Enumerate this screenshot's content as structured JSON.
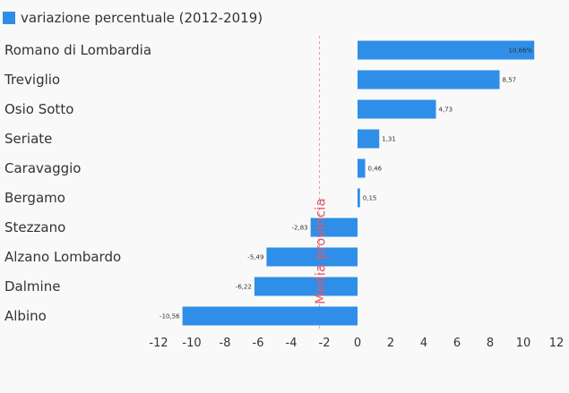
{
  "chart_data": {
    "type": "bar",
    "orientation": "horizontal",
    "categories": [
      "Romano di Lombardia",
      "Treviglio",
      "Osio Sotto",
      "Seriate",
      "Caravaggio",
      "Bergamo",
      "Stezzano",
      "Alzano Lombardo",
      "Dalmine",
      "Albino"
    ],
    "series": [
      {
        "name": "variazione percentuale (2012-2019)",
        "color": "#2f8ee8",
        "values": [
          10.66,
          8.57,
          4.73,
          1.31,
          0.46,
          0.15,
          -2.83,
          -5.49,
          -6.22,
          -10.56
        ],
        "value_labels": [
          "10,66%",
          "8,57",
          "4,73",
          "1,31",
          "0,46",
          "0,15",
          "-2,83",
          "-5,49",
          "-6,22",
          "-10,56"
        ]
      }
    ],
    "xlim": [
      -12,
      12
    ],
    "x_ticks": [
      "-12",
      "-10",
      "-8",
      "-6",
      "-4",
      "-2",
      "0",
      "2",
      "4",
      "6",
      "8",
      "10",
      "12"
    ],
    "reference_line": {
      "value": -2.3,
      "label": "Media provincia",
      "color": "#e05a6a"
    },
    "legend_position": "top-left",
    "grid": false
  }
}
